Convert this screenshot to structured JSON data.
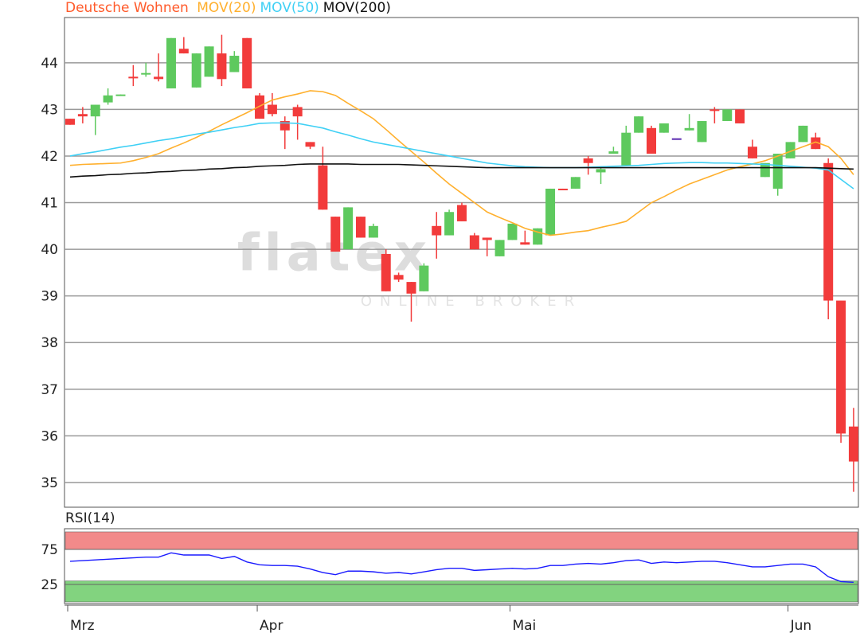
{
  "chart_data": [
    {
      "type": "candlestick",
      "title": "Deutsche Wohnen",
      "title_color": "#ff5a2a",
      "categories": [
        "Mrz",
        null,
        null,
        null,
        null,
        null,
        null,
        null,
        null,
        null,
        null,
        null,
        null,
        null,
        null,
        "Apr",
        null,
        null,
        null,
        null,
        null,
        null,
        null,
        null,
        null,
        null,
        null,
        null,
        null,
        null,
        null,
        null,
        null,
        null,
        null,
        "Mai",
        null,
        null,
        null,
        null,
        null,
        null,
        null,
        null,
        null,
        null,
        null,
        null,
        null,
        null,
        null,
        null,
        null,
        null,
        null,
        null,
        null,
        "Jun",
        null,
        null,
        null,
        null,
        null
      ],
      "open": [
        42.8,
        42.9,
        42.85,
        43.15,
        43.3,
        43.7,
        43.75,
        43.7,
        43.45,
        44.3,
        43.47,
        43.7,
        44.2,
        43.8,
        44.53,
        43.3,
        43.1,
        42.75,
        43.05,
        42.3,
        41.8,
        40.7,
        40.0,
        40.7,
        40.25,
        39.9,
        39.45,
        39.3,
        39.1,
        40.5,
        40.3,
        40.95,
        40.3,
        40.25,
        39.85,
        40.2,
        40.15,
        40.1,
        40.3,
        41.3,
        41.3,
        41.95,
        41.65,
        42.05,
        41.8,
        42.5,
        42.6,
        42.5,
        42.38,
        42.55,
        42.3,
        43.0,
        42.75,
        43.0,
        42.2,
        41.55,
        41.3,
        41.95,
        42.3,
        42.4,
        41.85,
        38.9,
        36.2
      ],
      "high": [
        42.8,
        43.05,
        43.1,
        43.45,
        43.32,
        43.95,
        44.0,
        44.2,
        44.53,
        44.55,
        44.2,
        44.35,
        44.6,
        44.25,
        44.53,
        43.35,
        43.35,
        42.85,
        43.1,
        42.3,
        42.2,
        40.7,
        40.9,
        40.7,
        40.55,
        40.0,
        39.5,
        39.3,
        39.7,
        40.8,
        40.85,
        41.0,
        40.35,
        40.25,
        40.2,
        40.55,
        40.4,
        40.45,
        41.3,
        41.3,
        41.55,
        42.0,
        41.75,
        42.2,
        42.65,
        42.85,
        42.65,
        42.7,
        42.38,
        42.9,
        42.75,
        43.05,
        43.0,
        43.0,
        42.35,
        41.85,
        42.05,
        42.3,
        42.65,
        42.5,
        41.95,
        38.9,
        36.6
      ],
      "low": [
        42.67,
        42.7,
        42.45,
        43.1,
        43.3,
        43.5,
        43.7,
        43.6,
        43.45,
        44.2,
        43.47,
        43.7,
        43.5,
        43.8,
        43.45,
        42.8,
        42.85,
        42.15,
        42.35,
        42.15,
        40.85,
        39.95,
        40.0,
        40.25,
        40.25,
        39.1,
        39.3,
        38.45,
        39.1,
        39.8,
        40.3,
        40.6,
        40.0,
        39.85,
        39.85,
        40.2,
        40.1,
        40.1,
        40.3,
        41.28,
        41.3,
        41.6,
        41.4,
        42.05,
        41.8,
        42.5,
        42.05,
        42.5,
        42.38,
        42.55,
        42.3,
        42.7,
        42.75,
        42.7,
        41.95,
        41.55,
        41.15,
        41.95,
        42.3,
        42.15,
        38.5,
        35.85,
        34.8
      ],
      "close": [
        42.67,
        42.85,
        43.1,
        43.3,
        43.32,
        43.68,
        43.78,
        43.65,
        44.53,
        44.2,
        44.2,
        44.35,
        43.65,
        44.15,
        43.45,
        42.8,
        42.9,
        42.55,
        42.85,
        42.2,
        40.85,
        39.95,
        40.9,
        40.25,
        40.5,
        39.1,
        39.35,
        39.05,
        39.65,
        40.3,
        40.8,
        40.6,
        40.0,
        40.2,
        40.2,
        40.55,
        40.1,
        40.45,
        41.3,
        41.28,
        41.55,
        41.85,
        41.72,
        42.1,
        42.5,
        42.85,
        42.05,
        42.7,
        42.38,
        42.6,
        42.75,
        42.98,
        43.0,
        42.7,
        41.95,
        41.85,
        42.05,
        42.3,
        42.65,
        42.15,
        38.9,
        36.05,
        35.45
      ],
      "up_color": "#5ec95e",
      "down_color": "#f23b3b",
      "doji_color": "#5a2ab0",
      "series": [
        {
          "name": "MOV(20)",
          "color": "#ffb02e",
          "values": [
            41.8,
            41.82,
            41.83,
            41.84,
            41.85,
            41.9,
            41.97,
            42.05,
            42.17,
            42.28,
            42.4,
            42.53,
            42.67,
            42.8,
            42.93,
            43.07,
            43.2,
            43.27,
            43.33,
            43.4,
            43.38,
            43.3,
            43.13,
            42.97,
            42.8,
            42.57,
            42.33,
            42.1,
            41.87,
            41.63,
            41.4,
            41.2,
            41.0,
            40.8,
            40.68,
            40.57,
            40.45,
            40.37,
            40.3,
            40.33,
            40.37,
            40.4,
            40.47,
            40.53,
            40.6,
            40.8,
            41.0,
            41.13,
            41.27,
            41.4,
            41.5,
            41.6,
            41.7,
            41.77,
            41.83,
            41.9,
            42.0,
            42.1,
            42.2,
            42.3,
            42.2,
            41.95,
            41.6
          ]
        },
        {
          "name": "MOV(50)",
          "color": "#3fd0f5",
          "values": [
            42.0,
            42.05,
            42.09,
            42.14,
            42.19,
            42.23,
            42.28,
            42.33,
            42.37,
            42.42,
            42.47,
            42.51,
            42.56,
            42.61,
            42.65,
            42.7,
            42.71,
            42.71,
            42.7,
            42.65,
            42.6,
            42.52,
            42.45,
            42.37,
            42.3,
            42.25,
            42.2,
            42.15,
            42.1,
            42.05,
            42.0,
            41.95,
            41.9,
            41.85,
            41.82,
            41.79,
            41.77,
            41.76,
            41.75,
            41.75,
            41.75,
            41.76,
            41.77,
            41.78,
            41.79,
            41.8,
            41.82,
            41.84,
            41.85,
            41.86,
            41.86,
            41.85,
            41.85,
            41.84,
            41.83,
            41.82,
            41.8,
            41.78,
            41.76,
            41.74,
            41.7,
            41.5,
            41.3
          ]
        },
        {
          "name": "MOV(200)",
          "color": "#111111",
          "values": [
            41.55,
            41.57,
            41.58,
            41.6,
            41.61,
            41.63,
            41.64,
            41.66,
            41.67,
            41.69,
            41.7,
            41.72,
            41.73,
            41.75,
            41.76,
            41.78,
            41.79,
            41.8,
            41.82,
            41.83,
            41.83,
            41.83,
            41.83,
            41.82,
            41.82,
            41.82,
            41.82,
            41.81,
            41.8,
            41.79,
            41.78,
            41.77,
            41.76,
            41.75,
            41.75,
            41.75,
            41.75,
            41.75,
            41.75,
            41.75,
            41.75,
            41.75,
            41.75,
            41.75,
            41.75,
            41.75,
            41.75,
            41.75,
            41.75,
            41.75,
            41.75,
            41.75,
            41.75,
            41.75,
            41.75,
            41.75,
            41.75,
            41.75,
            41.75,
            41.75,
            41.74,
            41.73,
            41.72
          ]
        }
      ],
      "ylim": [
        34.47,
        44.97
      ],
      "yticks": [
        35,
        36,
        37,
        38,
        39,
        40,
        41,
        42,
        43,
        44
      ],
      "grid": true
    },
    {
      "type": "line",
      "title": "RSI(14)",
      "color": "#1a1aff",
      "values": [
        58,
        59,
        60,
        61,
        62,
        63,
        64,
        64,
        70,
        67,
        67,
        67,
        62,
        65,
        57,
        53,
        52,
        52,
        51,
        47,
        42,
        39,
        44,
        44,
        43,
        41,
        42,
        40,
        43,
        46,
        48,
        48,
        45,
        46,
        47,
        48,
        47,
        48,
        52,
        52,
        54,
        55,
        54,
        56,
        59,
        60,
        55,
        57,
        56,
        57,
        58,
        58,
        56,
        53,
        50,
        50,
        52,
        54,
        54,
        50,
        36,
        29,
        28
      ],
      "ylim": [
        -2.3,
        104.5
      ],
      "yticks": [
        25,
        75
      ],
      "grid": true,
      "bands": [
        {
          "from": 75,
          "to": 100,
          "color": "#f28a8a"
        },
        {
          "from": 0,
          "to": 30,
          "color": "#82d37f"
        }
      ]
    }
  ],
  "watermark": {
    "text": "flatex",
    "subtext": "ONLINE BROKER"
  }
}
